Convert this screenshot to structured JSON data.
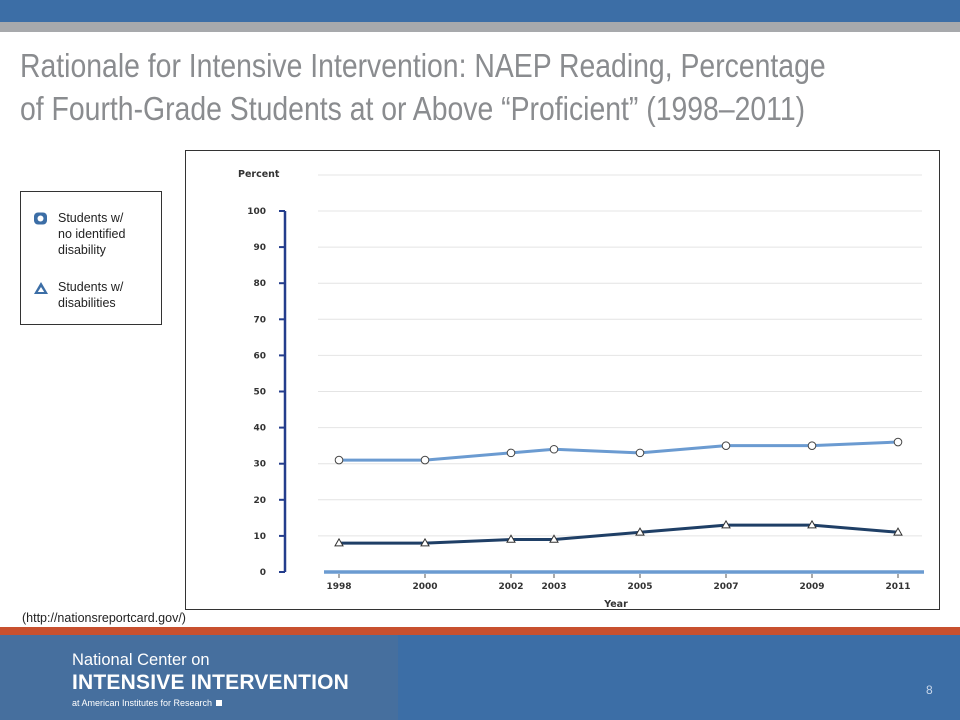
{
  "slide": {
    "title_line1": "Rationale for Intensive Intervention: NAEP Reading, Percentage",
    "title_line2": "of Fourth-Grade Students at or Above “Proficient” (1998–2011)",
    "source": "(http://nationsreportcard.gov/)",
    "page_number": "8"
  },
  "legend": {
    "items": [
      {
        "label_lines": [
          "Students w/",
          "no identified",
          "disability"
        ],
        "symbol": "circle"
      },
      {
        "label_lines": [
          "Students w/",
          "disabilities"
        ],
        "symbol": "triangle"
      }
    ]
  },
  "footer": {
    "line1": "National Center on",
    "line2": "INTENSIVE INTERVENTION",
    "line3": "at American Institutes for Research"
  },
  "colors": {
    "accent_blue": "#3c6ea6",
    "accent_orange": "#c8502e",
    "series_light": "#6b9bd1",
    "series_dark": "#1f3f66",
    "axis": "#243d8c"
  },
  "chart_data": {
    "type": "line",
    "ylabel": "Percent",
    "xlabel": "Year",
    "categories": [
      "1998",
      "2000",
      "2002",
      "2003",
      "2005",
      "2007",
      "2009",
      "2011"
    ],
    "x": [
      1998,
      2000,
      2002,
      2003,
      2005,
      2007,
      2009,
      2011
    ],
    "ylim": [
      0,
      100
    ],
    "yticks": [
      0,
      10,
      20,
      30,
      40,
      50,
      60,
      70,
      80,
      90,
      100
    ],
    "grid": true,
    "series": [
      {
        "name": "Students w/ no identified disability",
        "marker": "circle",
        "color": "#6b9bd1",
        "values": [
          31,
          31,
          33,
          34,
          33,
          35,
          35,
          36
        ]
      },
      {
        "name": "Students w/ disabilities",
        "marker": "triangle",
        "color": "#1f3f66",
        "values": [
          8,
          8,
          9,
          9,
          11,
          13,
          13,
          11
        ]
      }
    ]
  }
}
